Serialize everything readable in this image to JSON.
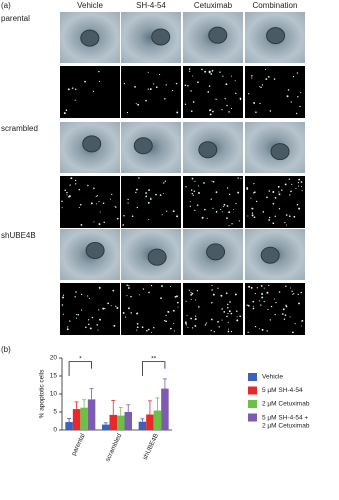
{
  "panel_a": {
    "label": "(a)",
    "columns": [
      "Vehicle",
      "SH-4-54",
      "Cetuximab",
      "Combination"
    ],
    "rows": [
      "parental",
      "scrambled",
      "shUBE4B"
    ]
  },
  "chart_data": {
    "type": "bar",
    "label": "(b)",
    "y_label": "% apoptotic cells",
    "categories": [
      "parental",
      "scrambled",
      "shUBE4B"
    ],
    "series": [
      {
        "name": "Vehicle",
        "color": "#3d5fbe",
        "values": [
          2.2,
          1.5,
          2.3
        ],
        "errors": [
          1.0,
          0.5,
          0.8
        ]
      },
      {
        "name": "5 µM SH-4-54",
        "color": "#e8282b",
        "values": [
          5.8,
          4.2,
          4.3
        ],
        "errors": [
          2.0,
          4.0,
          3.8
        ]
      },
      {
        "name": "2 µM Cetuximab",
        "color": "#6cc044",
        "values": [
          6.2,
          4.0,
          5.4
        ],
        "errors": [
          2.2,
          2.3,
          3.5
        ]
      },
      {
        "name": "5 µM SH-4-54 + 2 µM Cetuximab",
        "color": "#7d5cb0",
        "values": [
          8.5,
          5.0,
          11.5
        ],
        "errors": [
          3.0,
          2.0,
          2.7
        ]
      }
    ],
    "annotations": [
      "*",
      "**"
    ],
    "ylim": [
      0,
      20
    ],
    "yticks": [
      0,
      5,
      10,
      15,
      20
    ]
  }
}
